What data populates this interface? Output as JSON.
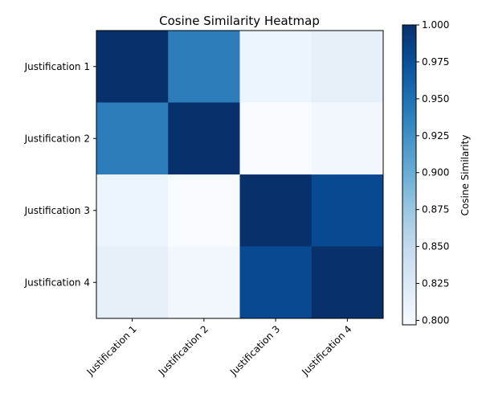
{
  "chart_data": {
    "type": "heatmap",
    "title": "Cosine Similarity Heatmap",
    "rows": [
      "Justification 1",
      "Justification 2",
      "Justification 3",
      "Justification 4"
    ],
    "cols": [
      "Justification 1",
      "Justification 2",
      "Justification 3",
      "Justification 4"
    ],
    "values": [
      [
        1.0,
        0.94,
        0.808,
        0.815
      ],
      [
        0.94,
        1.0,
        0.797,
        0.803
      ],
      [
        0.808,
        0.797,
        1.0,
        0.98
      ],
      [
        0.815,
        0.803,
        0.98,
        1.0
      ]
    ],
    "colormap": "Blues",
    "colorbar": {
      "label": "Cosine Similarity",
      "vmin": 0.797,
      "vmax": 1.0,
      "ticks": [
        1.0,
        0.975,
        0.95,
        0.925,
        0.9,
        0.875,
        0.85,
        0.825,
        0.8
      ],
      "tick_labels": [
        "1.000",
        "0.975",
        "0.950",
        "0.925",
        "0.900",
        "0.875",
        "0.850",
        "0.825",
        "0.800"
      ]
    },
    "xtick_rotation": 45
  }
}
